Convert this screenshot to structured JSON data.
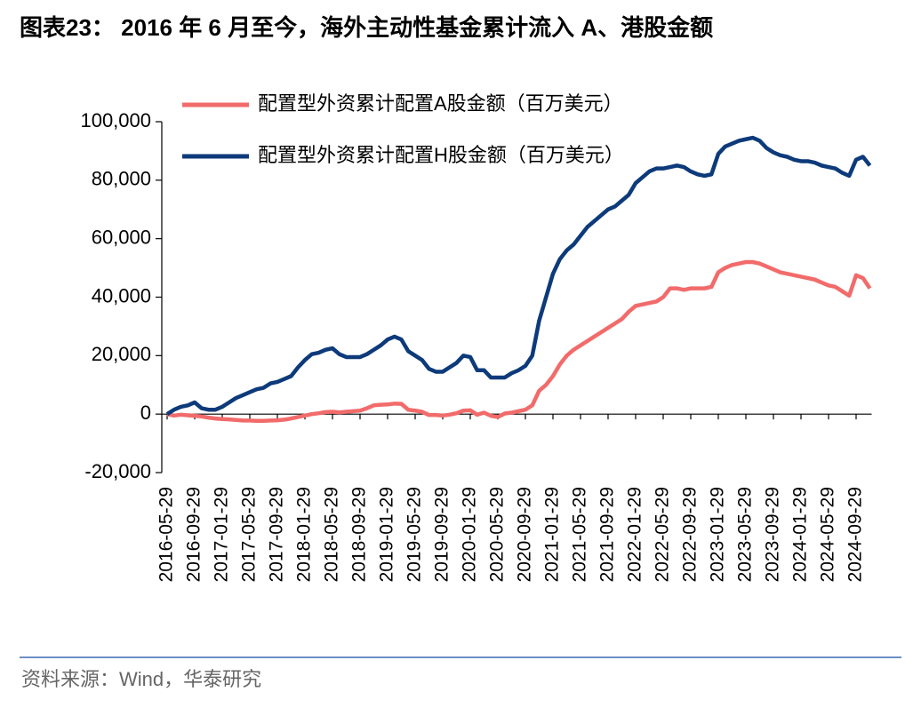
{
  "chart_data": {
    "type": "line",
    "title": "图表23： 2016 年 6 月至今，海外主动性基金累计流入 A、港股金额",
    "source": "资料来源：Wind，华泰研究",
    "categories": [
      "2016-05-29",
      null,
      null,
      null,
      "2016-09-29",
      null,
      null,
      null,
      "2017-01-29",
      null,
      null,
      null,
      "2017-05-29",
      null,
      null,
      null,
      "2017-09-29",
      null,
      null,
      null,
      "2018-01-29",
      null,
      null,
      null,
      "2018-05-29",
      null,
      null,
      null,
      "2018-09-29",
      null,
      null,
      null,
      "2019-01-29",
      null,
      null,
      null,
      "2019-05-29",
      null,
      null,
      null,
      "2019-09-29",
      null,
      null,
      null,
      "2020-01-29",
      null,
      null,
      null,
      "2020-05-29",
      null,
      null,
      null,
      "2020-09-29",
      null,
      null,
      null,
      "2021-01-29",
      null,
      null,
      null,
      "2021-05-29",
      null,
      null,
      null,
      "2021-09-29",
      null,
      null,
      null,
      "2022-01-29",
      null,
      null,
      null,
      "2022-05-29",
      null,
      null,
      null,
      "2022-09-29",
      null,
      null,
      null,
      "2023-01-29",
      null,
      null,
      null,
      "2023-05-29",
      null,
      null,
      null,
      "2023-09-29",
      null,
      null,
      null,
      "2024-01-29",
      null,
      null,
      null,
      "2024-05-29",
      null,
      null,
      null,
      "2024-09-29",
      null,
      null
    ],
    "series": [
      {
        "name": "配置型外资累计配置A股金额（百万美元）",
        "color": "#f26b6b",
        "values": [
          0,
          -500,
          -200,
          -400,
          -600,
          -800,
          -1200,
          -1500,
          -1700,
          -1800,
          -2000,
          -2200,
          -2200,
          -2300,
          -2300,
          -2200,
          -2100,
          -1900,
          -1500,
          -1000,
          -500,
          0,
          300,
          700,
          800,
          600,
          800,
          1000,
          1200,
          2000,
          3000,
          3200,
          3300,
          3600,
          3500,
          1500,
          1200,
          800,
          -300,
          -300,
          -500,
          -200,
          300,
          1200,
          1300,
          -200,
          500,
          -600,
          -1000,
          200,
          500,
          1000,
          1500,
          3000,
          8000,
          10000,
          13000,
          17000,
          20000,
          22000,
          23500,
          25000,
          26500,
          28000,
          29500,
          31000,
          32500,
          35000,
          37000,
          37500,
          38000,
          38500,
          40000,
          43000,
          43000,
          42500,
          43000,
          43000,
          43000,
          43500,
          48500,
          50000,
          51000,
          51500,
          52000,
          52000,
          51500,
          50500,
          49500,
          48500,
          48000,
          47500,
          47000,
          46500,
          46000,
          45000,
          44000,
          43500,
          42000,
          40500,
          47500,
          46500,
          43000
        ]
      },
      {
        "name": "配置型外资累计配置H股金额（百万美元）",
        "color": "#0d3a7a",
        "values": [
          0,
          1500,
          2500,
          3000,
          4000,
          2000,
          1500,
          1500,
          2500,
          4000,
          5500,
          6500,
          7500,
          8500,
          9000,
          10500,
          11000,
          12000,
          13000,
          16000,
          18500,
          20500,
          21000,
          22000,
          22500,
          20500,
          19500,
          19500,
          19500,
          20500,
          22000,
          23500,
          25500,
          26500,
          25500,
          21500,
          20000,
          18500,
          15500,
          14500,
          14500,
          16000,
          17500,
          20000,
          19500,
          15000,
          15000,
          12500,
          12500,
          12500,
          14000,
          15000,
          16500,
          20000,
          32000,
          40000,
          48000,
          53000,
          56000,
          58000,
          61000,
          64000,
          66000,
          68000,
          70000,
          71000,
          73000,
          75000,
          79000,
          81000,
          83000,
          84000,
          84000,
          84500,
          85000,
          84500,
          83000,
          82000,
          81500,
          82000,
          89000,
          91500,
          92500,
          93500,
          94000,
          94500,
          93500,
          91000,
          89500,
          88500,
          88000,
          87000,
          86500,
          86500,
          86000,
          85000,
          84500,
          84000,
          82500,
          81500,
          87000,
          88000,
          85000
        ]
      }
    ],
    "ylim": [
      -20000,
      100000
    ],
    "yticks": [
      {
        "value": -20000,
        "label": "-20,000"
      },
      0,
      {
        "value": 20000,
        "label": "20,000"
      },
      {
        "value": 40000,
        "label": "40,000"
      },
      {
        "value": 60000,
        "label": "60,000"
      },
      {
        "value": 80000,
        "label": "80,000"
      },
      {
        "value": 100000,
        "label": "100,000"
      }
    ],
    "grid": false,
    "legend": "top"
  }
}
